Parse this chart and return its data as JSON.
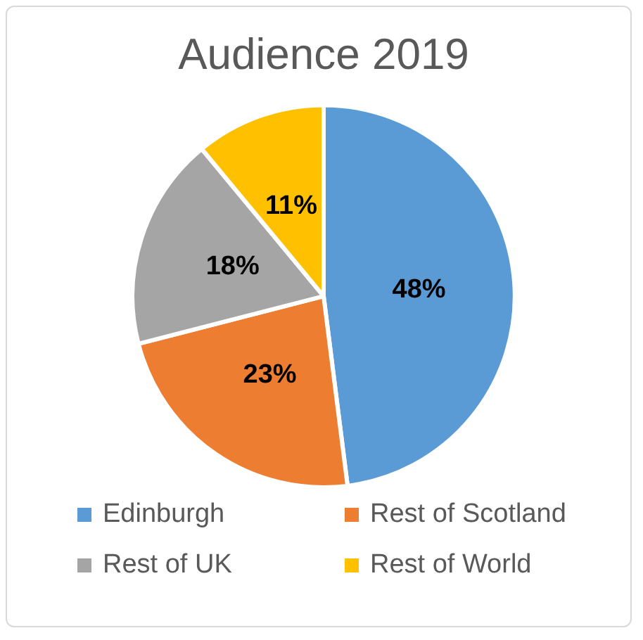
{
  "chart_data": {
    "type": "pie",
    "title": "Audience 2019",
    "categories": [
      "Edinburgh",
      "Rest of Scotland",
      "Rest of UK",
      "Rest of World"
    ],
    "values": [
      48,
      23,
      18,
      11
    ],
    "colors": [
      "#5b9bd5",
      "#ed7d31",
      "#a5a5a5",
      "#ffc000"
    ],
    "value_labels": [
      "48%",
      "23%",
      "18%",
      "11%"
    ],
    "legend": "bottom"
  }
}
